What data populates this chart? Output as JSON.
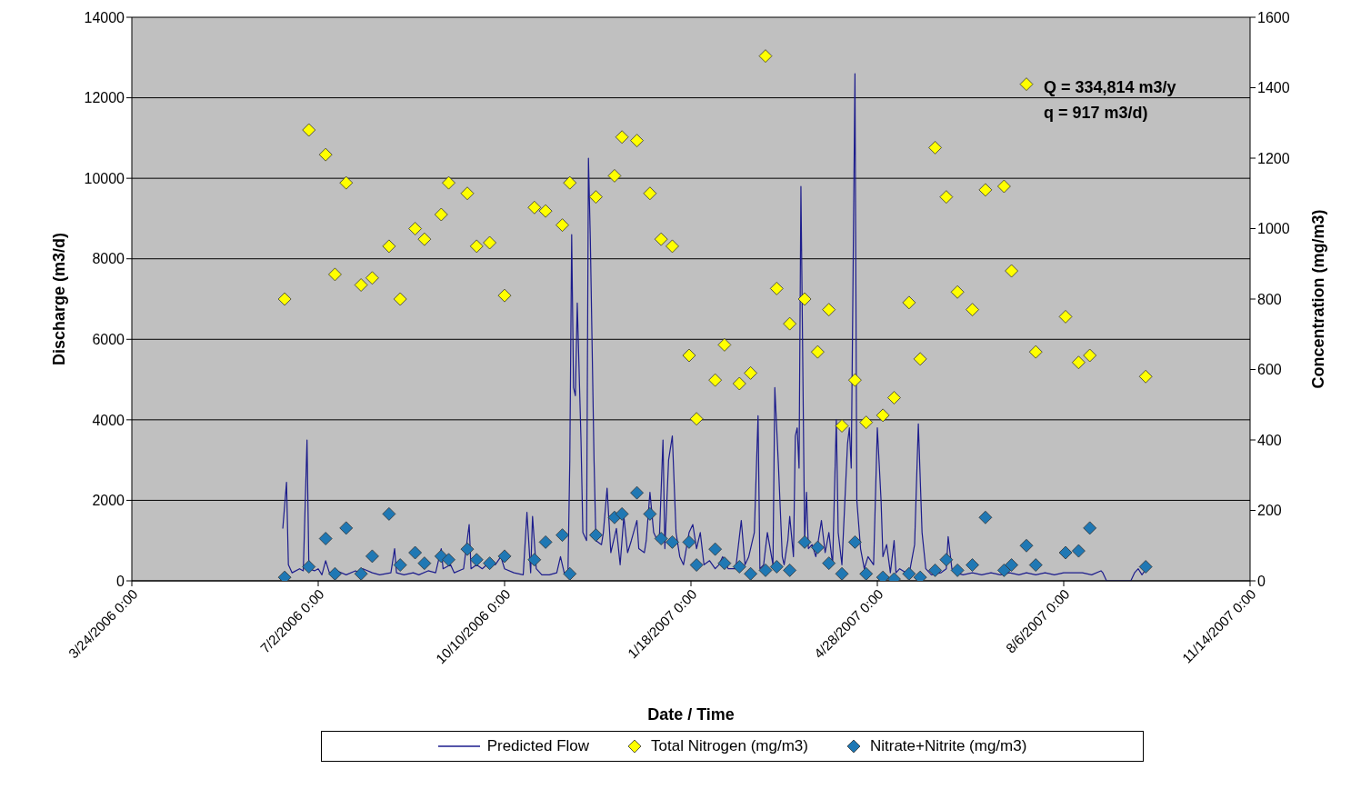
{
  "chart_data": {
    "type": "scatter",
    "xlabel": "Date / Time",
    "ylabel": "Discharge (m3/d)",
    "y2label": "Concentration (mg/m3)",
    "annotations": [
      "Q = 334,814 m3/y",
      "q = 917 m3/d)"
    ],
    "xlim": [
      "2006-03-24",
      "2007-11-14"
    ],
    "xticks": [
      {
        "value": "2006-03-24",
        "label": "3/24/2006 0:00"
      },
      {
        "value": "2006-07-02",
        "label": "7/2/2006 0:00"
      },
      {
        "value": "2006-10-10",
        "label": "10/10/2006 0:00"
      },
      {
        "value": "2007-01-18",
        "label": "1/18/2007 0:00"
      },
      {
        "value": "2007-04-28",
        "label": "4/28/2007 0:00"
      },
      {
        "value": "2007-08-06",
        "label": "8/6/2007 0:00"
      },
      {
        "value": "2007-11-14",
        "label": "11/14/2007 0:00"
      }
    ],
    "ylim": [
      0,
      14000
    ],
    "yticks": [
      0,
      2000,
      4000,
      6000,
      8000,
      10000,
      12000,
      14000
    ],
    "y2lim": [
      0,
      1600
    ],
    "y2ticks": [
      0,
      200,
      400,
      600,
      800,
      1000,
      1200,
      1400,
      1600
    ],
    "grid": "y",
    "legend": "bottom",
    "marker": "diamond",
    "x": [
      "2006-06-14",
      "2006-06-27",
      "2006-07-06",
      "2006-07-11",
      "2006-07-17",
      "2006-07-25",
      "2006-07-31",
      "2006-08-09",
      "2006-08-15",
      "2006-08-23",
      "2006-08-28",
      "2006-09-06",
      "2006-09-10",
      "2006-09-20",
      "2006-09-25",
      "2006-10-02",
      "2006-10-10",
      "2006-10-26",
      "2006-11-01",
      "2006-11-10",
      "2006-11-14",
      "2006-11-28",
      "2006-12-08",
      "2006-12-12",
      "2006-12-20",
      "2006-12-27",
      "2007-01-02",
      "2007-01-08",
      "2007-01-17",
      "2007-01-21",
      "2007-01-31",
      "2007-02-05",
      "2007-02-13",
      "2007-02-19",
      "2007-02-27",
      "2007-03-05",
      "2007-03-12",
      "2007-03-20",
      "2007-03-27",
      "2007-04-02",
      "2007-04-09",
      "2007-04-16",
      "2007-04-22",
      "2007-05-01",
      "2007-05-07",
      "2007-05-15",
      "2007-05-21",
      "2007-05-29",
      "2007-06-04",
      "2007-06-10",
      "2007-06-18",
      "2007-06-25",
      "2007-07-05",
      "2007-07-09",
      "2007-07-17",
      "2007-07-22",
      "2007-08-07",
      "2007-08-14",
      "2007-08-20",
      "2007-09-19"
    ],
    "series": [
      {
        "name": "Predicted Flow",
        "type": "line",
        "marker": "none",
        "color": "#1c1c8c",
        "x": [
          "2006-06-13",
          "2006-06-15",
          "2006-06-16",
          "2006-06-18",
          "2006-06-22",
          "2006-06-24",
          "2006-06-26",
          "2006-06-27",
          "2006-06-30",
          "2006-07-02",
          "2006-07-04",
          "2006-07-06",
          "2006-07-08",
          "2006-07-12",
          "2006-07-17",
          "2006-07-22",
          "2006-07-24",
          "2006-07-26",
          "2006-07-31",
          "2006-08-04",
          "2006-08-10",
          "2006-08-12",
          "2006-08-13",
          "2006-08-17",
          "2006-08-22",
          "2006-08-25",
          "2006-08-30",
          "2006-09-03",
          "2006-09-06",
          "2006-09-07",
          "2006-09-11",
          "2006-09-13",
          "2006-09-18",
          "2006-09-21",
          "2006-09-22",
          "2006-09-25",
          "2006-09-28",
          "2006-10-03",
          "2006-10-05",
          "2006-10-08",
          "2006-10-10",
          "2006-10-15",
          "2006-10-20",
          "2006-10-22",
          "2006-10-24",
          "2006-10-25",
          "2006-10-27",
          "2006-10-30",
          "2006-11-03",
          "2006-11-07",
          "2006-11-09",
          "2006-11-11",
          "2006-11-13",
          "2006-11-14",
          "2006-11-15",
          "2006-11-16",
          "2006-11-17",
          "2006-11-18",
          "2006-11-20",
          "2006-11-21",
          "2006-11-23",
          "2006-11-24",
          "2006-11-25",
          "2006-11-27",
          "2006-11-28",
          "2006-12-01",
          "2006-12-02",
          "2006-12-04",
          "2006-12-06",
          "2006-12-08",
          "2006-12-09",
          "2006-12-11",
          "2006-12-13",
          "2006-12-15",
          "2006-12-17",
          "2006-12-20",
          "2006-12-21",
          "2006-12-24",
          "2006-12-25",
          "2006-12-27",
          "2006-12-29",
          "2006-12-31",
          "2007-01-01",
          "2007-01-03",
          "2007-01-04",
          "2007-01-06",
          "2007-01-08",
          "2007-01-10",
          "2007-01-12",
          "2007-01-14",
          "2007-01-17",
          "2007-01-19",
          "2007-01-21",
          "2007-01-23",
          "2007-01-25",
          "2007-01-28",
          "2007-01-31",
          "2007-02-02",
          "2007-02-04",
          "2007-02-07",
          "2007-02-11",
          "2007-02-14",
          "2007-02-16",
          "2007-02-18",
          "2007-02-21",
          "2007-02-23",
          "2007-02-24",
          "2007-02-26",
          "2007-02-28",
          "2007-03-03",
          "2007-03-04",
          "2007-03-06",
          "2007-03-08",
          "2007-03-09",
          "2007-03-11",
          "2007-03-12",
          "2007-03-14",
          "2007-03-15",
          "2007-03-16",
          "2007-03-17",
          "2007-03-18",
          "2007-03-20",
          "2007-03-21",
          "2007-03-22",
          "2007-03-24",
          "2007-03-26",
          "2007-03-29",
          "2007-03-31",
          "2007-04-02",
          "2007-04-04",
          "2007-04-06",
          "2007-04-07",
          "2007-04-09",
          "2007-04-12",
          "2007-04-13",
          "2007-04-14",
          "2007-04-16",
          "2007-04-17",
          "2007-04-19",
          "2007-04-21",
          "2007-04-23",
          "2007-04-26",
          "2007-04-28",
          "2007-04-30",
          "2007-05-01",
          "2007-05-03",
          "2007-05-05",
          "2007-05-07",
          "2007-05-08",
          "2007-05-10",
          "2007-05-15",
          "2007-05-18",
          "2007-05-20",
          "2007-05-22",
          "2007-05-24",
          "2007-05-27",
          "2007-06-01",
          "2007-06-04",
          "2007-06-05",
          "2007-06-07",
          "2007-06-09",
          "2007-06-13",
          "2007-06-18",
          "2007-06-23",
          "2007-06-28",
          "2007-07-03",
          "2007-07-08",
          "2007-07-13",
          "2007-07-17",
          "2007-07-22",
          "2007-07-27",
          "2007-08-01",
          "2007-08-06",
          "2007-08-11",
          "2007-08-16",
          "2007-08-21",
          "2007-08-26",
          "2007-08-27",
          "2007-08-29",
          "2007-09-11",
          "2007-09-13",
          "2007-09-15",
          "2007-09-17",
          "2007-09-20"
        ],
        "values": [
          1300,
          2450,
          400,
          200,
          300,
          250,
          3500,
          300,
          250,
          300,
          150,
          500,
          200,
          250,
          150,
          250,
          200,
          300,
          200,
          150,
          200,
          800,
          200,
          150,
          200,
          150,
          250,
          200,
          800,
          300,
          400,
          200,
          300,
          1400,
          300,
          400,
          300,
          500,
          400,
          600,
          300,
          200,
          150,
          1700,
          200,
          1600,
          300,
          150,
          150,
          200,
          600,
          200,
          150,
          3000,
          8600,
          4800,
          4600,
          6900,
          3500,
          1200,
          1000,
          10500,
          8500,
          3000,
          1000,
          900,
          1200,
          2300,
          700,
          1100,
          1300,
          400,
          1600,
          700,
          1000,
          1500,
          800,
          700,
          1000,
          2200,
          1200,
          1000,
          1000,
          3500,
          800,
          3000,
          3600,
          1200,
          600,
          400,
          1200,
          1400,
          800,
          1200,
          400,
          500,
          300,
          400,
          600,
          300,
          300,
          1500,
          400,
          600,
          1200,
          4100,
          300,
          400,
          1200,
          400,
          4800,
          2800,
          600,
          400,
          1000,
          1600,
          600,
          3600,
          3800,
          2800,
          9800,
          1000,
          2200,
          800,
          900,
          600,
          1500,
          700,
          1200,
          400,
          4000,
          1200,
          400,
          3400,
          3800,
          2800,
          12600,
          2000,
          800,
          300,
          600,
          400,
          3800,
          2000,
          600,
          900,
          200,
          1000,
          200,
          300,
          150,
          900,
          3900,
          1200,
          300,
          150,
          200,
          300,
          1100,
          300,
          200,
          150,
          200,
          150,
          200,
          150,
          200,
          150,
          200,
          150,
          200,
          150,
          200,
          200,
          200,
          150,
          250,
          200,
          0,
          0,
          200,
          300,
          150,
          350
        ]
      },
      {
        "name": "Total Nitrogen  (mg/m3)",
        "axis": "y2",
        "color": "#ffff00",
        "values": [
          800,
          1280,
          1210,
          870,
          1130,
          840,
          860,
          950,
          800,
          1000,
          970,
          1040,
          1130,
          1100,
          950,
          960,
          810,
          1060,
          1050,
          1010,
          1130,
          1090,
          1150,
          1260,
          1250,
          1100,
          970,
          950,
          640,
          460,
          570,
          670,
          560,
          590,
          1490,
          830,
          730,
          800,
          650,
          770,
          440,
          570,
          450,
          470,
          520,
          790,
          630,
          1230,
          1090,
          820,
          770,
          1110,
          1120,
          880,
          1410,
          650,
          750,
          620,
          640,
          580
        ]
      },
      {
        "name": "Nitrate+Nitrite  (mg/m3)",
        "axis": "y2",
        "color": "#1f78b4",
        "values": [
          10,
          40,
          120,
          20,
          150,
          20,
          70,
          190,
          45,
          80,
          50,
          70,
          60,
          90,
          60,
          50,
          70,
          60,
          110,
          130,
          20,
          130,
          180,
          190,
          250,
          190,
          120,
          110,
          110,
          45,
          90,
          50,
          40,
          20,
          30,
          40,
          30,
          110,
          95,
          50,
          20,
          110,
          20,
          10,
          5,
          20,
          10,
          30,
          60,
          30,
          45,
          180,
          30,
          45,
          100,
          45,
          80,
          85,
          150,
          40
        ]
      }
    ]
  }
}
